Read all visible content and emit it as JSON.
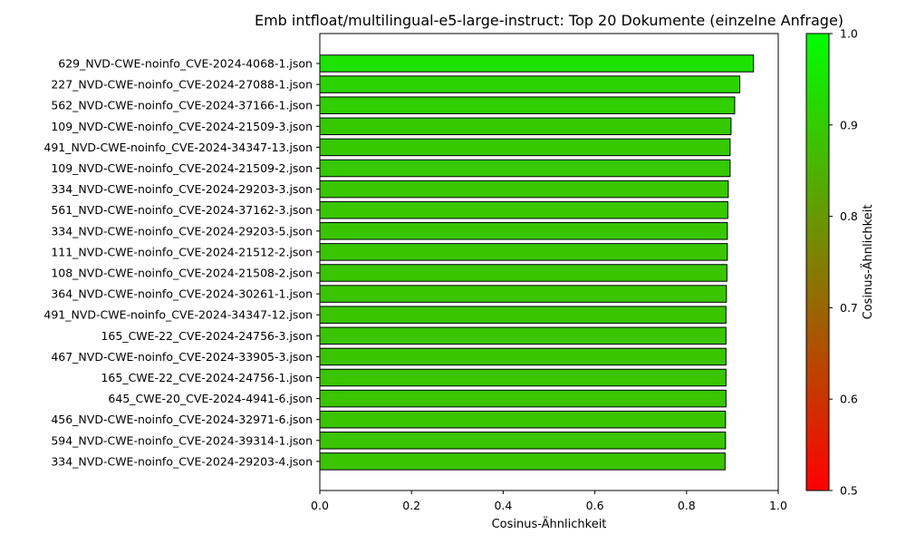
{
  "chart_data": {
    "type": "bar",
    "orientation": "horizontal",
    "title": "Emb intfloat/multilingual-e5-large-instruct: Top 20 Dokumente (einzelne Anfrage)",
    "xlabel": "Cosinus-Ähnlichkeit",
    "ylabel": "",
    "xlim": [
      0,
      1.0
    ],
    "xticks": [
      "0.0",
      "0.2",
      "0.4",
      "0.6",
      "0.8",
      "1.0"
    ],
    "grid": false,
    "legend": "none",
    "bar_edge_color": "#000000",
    "categories": [
      "629_NVD-CWE-noinfo_CVE-2024-4068-1.json",
      "227_NVD-CWE-noinfo_CVE-2024-27088-1.json",
      "562_NVD-CWE-noinfo_CVE-2024-37166-1.json",
      "109_NVD-CWE-noinfo_CVE-2024-21509-3.json",
      "491_NVD-CWE-noinfo_CVE-2024-34347-13.json",
      "109_NVD-CWE-noinfo_CVE-2024-21509-2.json",
      "334_NVD-CWE-noinfo_CVE-2024-29203-3.json",
      "561_NVD-CWE-noinfo_CVE-2024-37162-3.json",
      "334_NVD-CWE-noinfo_CVE-2024-29203-5.json",
      "111_NVD-CWE-noinfo_CVE-2024-21512-2.json",
      "108_NVD-CWE-noinfo_CVE-2024-21508-2.json",
      "364_NVD-CWE-noinfo_CVE-2024-30261-1.json",
      "491_NVD-CWE-noinfo_CVE-2024-34347-12.json",
      "165_CWE-22_CVE-2024-24756-3.json",
      "467_NVD-CWE-noinfo_CVE-2024-33905-3.json",
      "165_CWE-22_CVE-2024-24756-1.json",
      "645_CWE-20_CVE-2024-4941-6.json",
      "456_NVD-CWE-noinfo_CVE-2024-32971-6.json",
      "594_NVD-CWE-noinfo_CVE-2024-39314-1.json",
      "334_NVD-CWE-noinfo_CVE-2024-29203-4.json"
    ],
    "values": [
      0.946,
      0.916,
      0.905,
      0.897,
      0.895,
      0.895,
      0.891,
      0.89,
      0.889,
      0.889,
      0.888,
      0.887,
      0.886,
      0.886,
      0.886,
      0.886,
      0.886,
      0.885,
      0.885,
      0.884
    ],
    "colorbar": {
      "label": "Cosinus-Ähnlichkeit",
      "range": [
        0.5,
        1.0
      ],
      "ticks": [
        "0.5",
        "0.6",
        "0.7",
        "0.8",
        "0.9",
        "1.0"
      ],
      "color_low": "#ff0000",
      "color_high": "#00ff00"
    }
  }
}
